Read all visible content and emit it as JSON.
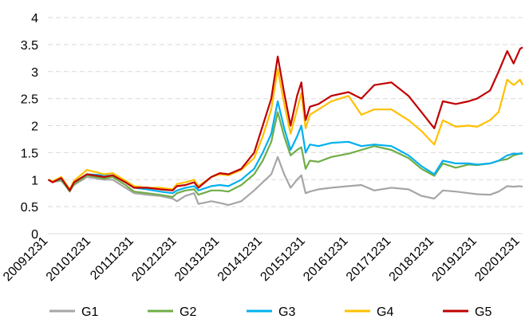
{
  "chart_data": {
    "type": "line",
    "title": "",
    "xlabel": "",
    "ylabel": "",
    "ylim": [
      0,
      4
    ],
    "yticks": [
      "0",
      "0.5",
      "1",
      "1.5",
      "2",
      "2.5",
      "3",
      "3.5",
      "4"
    ],
    "xlim": [
      2009.99,
      2021.06
    ],
    "xticks": [
      {
        "label": "20091231",
        "x": 2010.0
      },
      {
        "label": "20101231",
        "x": 2011.0
      },
      {
        "label": "20111231",
        "x": 2012.0
      },
      {
        "label": "20121231",
        "x": 2013.0
      },
      {
        "label": "20131231",
        "x": 2014.0
      },
      {
        "label": "20141231",
        "x": 2015.0
      },
      {
        "label": "20151231",
        "x": 2016.0
      },
      {
        "label": "20161231",
        "x": 2017.0
      },
      {
        "label": "20171231",
        "x": 2018.0
      },
      {
        "label": "20181231",
        "x": 2019.0
      },
      {
        "label": "20191231",
        "x": 2020.0
      },
      {
        "label": "20201231",
        "x": 2021.0
      }
    ],
    "grid": "horizontal dashed",
    "legend_position": "bottom",
    "series": [
      {
        "name": "G1",
        "color": "#a6a6a6",
        "points": [
          [
            2010.0,
            1.0
          ],
          [
            2010.1,
            0.96
          ],
          [
            2010.3,
            0.98
          ],
          [
            2010.5,
            0.8
          ],
          [
            2010.6,
            0.9
          ],
          [
            2010.9,
            1.05
          ],
          [
            2011.3,
            1.0
          ],
          [
            2011.5,
            1.0
          ],
          [
            2011.8,
            0.85
          ],
          [
            2012.0,
            0.75
          ],
          [
            2012.3,
            0.72
          ],
          [
            2012.6,
            0.7
          ],
          [
            2012.9,
            0.65
          ],
          [
            2013.0,
            0.6
          ],
          [
            2013.2,
            0.7
          ],
          [
            2013.4,
            0.75
          ],
          [
            2013.5,
            0.55
          ],
          [
            2013.8,
            0.6
          ],
          [
            2014.0,
            0.57
          ],
          [
            2014.2,
            0.53
          ],
          [
            2014.5,
            0.6
          ],
          [
            2014.8,
            0.8
          ],
          [
            2015.0,
            0.95
          ],
          [
            2015.2,
            1.1
          ],
          [
            2015.35,
            1.42
          ],
          [
            2015.5,
            1.1
          ],
          [
            2015.65,
            0.85
          ],
          [
            2015.8,
            1.0
          ],
          [
            2015.9,
            1.08
          ],
          [
            2016.0,
            0.75
          ],
          [
            2016.1,
            0.78
          ],
          [
            2016.3,
            0.82
          ],
          [
            2016.6,
            0.85
          ],
          [
            2017.0,
            0.88
          ],
          [
            2017.3,
            0.9
          ],
          [
            2017.6,
            0.8
          ],
          [
            2018.0,
            0.85
          ],
          [
            2018.4,
            0.82
          ],
          [
            2018.7,
            0.7
          ],
          [
            2019.0,
            0.65
          ],
          [
            2019.2,
            0.8
          ],
          [
            2019.5,
            0.78
          ],
          [
            2019.8,
            0.75
          ],
          [
            2020.0,
            0.73
          ],
          [
            2020.3,
            0.72
          ],
          [
            2020.5,
            0.78
          ],
          [
            2020.7,
            0.88
          ],
          [
            2020.85,
            0.87
          ],
          [
            2021.0,
            0.88
          ],
          [
            2021.06,
            0.87
          ]
        ]
      },
      {
        "name": "G2",
        "color": "#70ad47",
        "points": [
          [
            2010.0,
            1.0
          ],
          [
            2010.1,
            0.96
          ],
          [
            2010.3,
            1.0
          ],
          [
            2010.5,
            0.78
          ],
          [
            2010.6,
            0.92
          ],
          [
            2010.9,
            1.08
          ],
          [
            2011.3,
            1.02
          ],
          [
            2011.5,
            1.05
          ],
          [
            2011.8,
            0.9
          ],
          [
            2012.0,
            0.78
          ],
          [
            2012.3,
            0.75
          ],
          [
            2012.6,
            0.72
          ],
          [
            2012.9,
            0.68
          ],
          [
            2013.0,
            0.75
          ],
          [
            2013.2,
            0.8
          ],
          [
            2013.4,
            0.82
          ],
          [
            2013.5,
            0.72
          ],
          [
            2013.8,
            0.8
          ],
          [
            2014.0,
            0.8
          ],
          [
            2014.2,
            0.78
          ],
          [
            2014.5,
            0.9
          ],
          [
            2014.8,
            1.1
          ],
          [
            2015.0,
            1.35
          ],
          [
            2015.2,
            1.7
          ],
          [
            2015.35,
            2.25
          ],
          [
            2015.5,
            1.8
          ],
          [
            2015.65,
            1.45
          ],
          [
            2015.8,
            1.55
          ],
          [
            2015.9,
            1.6
          ],
          [
            2016.0,
            1.2
          ],
          [
            2016.1,
            1.35
          ],
          [
            2016.3,
            1.33
          ],
          [
            2016.6,
            1.42
          ],
          [
            2017.0,
            1.48
          ],
          [
            2017.3,
            1.55
          ],
          [
            2017.6,
            1.62
          ],
          [
            2018.0,
            1.55
          ],
          [
            2018.4,
            1.4
          ],
          [
            2018.7,
            1.2
          ],
          [
            2019.0,
            1.07
          ],
          [
            2019.2,
            1.3
          ],
          [
            2019.5,
            1.22
          ],
          [
            2019.8,
            1.28
          ],
          [
            2020.0,
            1.27
          ],
          [
            2020.3,
            1.3
          ],
          [
            2020.5,
            1.35
          ],
          [
            2020.7,
            1.38
          ],
          [
            2020.85,
            1.45
          ],
          [
            2021.0,
            1.48
          ],
          [
            2021.06,
            1.5
          ]
        ]
      },
      {
        "name": "G3",
        "color": "#00b0f0",
        "points": [
          [
            2010.0,
            1.0
          ],
          [
            2010.1,
            0.96
          ],
          [
            2010.3,
            1.02
          ],
          [
            2010.5,
            0.8
          ],
          [
            2010.6,
            0.95
          ],
          [
            2010.9,
            1.1
          ],
          [
            2011.3,
            1.08
          ],
          [
            2011.5,
            1.12
          ],
          [
            2011.8,
            0.95
          ],
          [
            2012.0,
            0.85
          ],
          [
            2012.3,
            0.82
          ],
          [
            2012.6,
            0.78
          ],
          [
            2012.9,
            0.75
          ],
          [
            2013.0,
            0.8
          ],
          [
            2013.2,
            0.85
          ],
          [
            2013.4,
            0.88
          ],
          [
            2013.5,
            0.8
          ],
          [
            2013.8,
            0.88
          ],
          [
            2014.0,
            0.9
          ],
          [
            2014.2,
            0.88
          ],
          [
            2014.5,
            1.0
          ],
          [
            2014.8,
            1.2
          ],
          [
            2015.0,
            1.5
          ],
          [
            2015.2,
            1.85
          ],
          [
            2015.35,
            2.45
          ],
          [
            2015.5,
            1.95
          ],
          [
            2015.65,
            1.55
          ],
          [
            2015.8,
            1.8
          ],
          [
            2015.9,
            2.0
          ],
          [
            2016.0,
            1.5
          ],
          [
            2016.1,
            1.65
          ],
          [
            2016.3,
            1.62
          ],
          [
            2016.6,
            1.68
          ],
          [
            2017.0,
            1.7
          ],
          [
            2017.3,
            1.62
          ],
          [
            2017.6,
            1.65
          ],
          [
            2018.0,
            1.62
          ],
          [
            2018.4,
            1.45
          ],
          [
            2018.7,
            1.25
          ],
          [
            2019.0,
            1.1
          ],
          [
            2019.2,
            1.35
          ],
          [
            2019.5,
            1.3
          ],
          [
            2019.8,
            1.3
          ],
          [
            2020.0,
            1.28
          ],
          [
            2020.3,
            1.3
          ],
          [
            2020.5,
            1.35
          ],
          [
            2020.7,
            1.45
          ],
          [
            2020.85,
            1.48
          ],
          [
            2021.0,
            1.48
          ],
          [
            2021.06,
            1.48
          ]
        ]
      },
      {
        "name": "G4",
        "color": "#ffc000",
        "points": [
          [
            2010.0,
            1.0
          ],
          [
            2010.1,
            0.97
          ],
          [
            2010.3,
            1.05
          ],
          [
            2010.5,
            0.82
          ],
          [
            2010.6,
            0.98
          ],
          [
            2010.9,
            1.18
          ],
          [
            2011.3,
            1.1
          ],
          [
            2011.5,
            1.12
          ],
          [
            2011.8,
            0.98
          ],
          [
            2012.0,
            0.88
          ],
          [
            2012.3,
            0.85
          ],
          [
            2012.6,
            0.85
          ],
          [
            2012.9,
            0.82
          ],
          [
            2013.0,
            0.92
          ],
          [
            2013.2,
            0.95
          ],
          [
            2013.4,
            1.0
          ],
          [
            2013.5,
            0.88
          ],
          [
            2013.8,
            1.05
          ],
          [
            2014.0,
            1.1
          ],
          [
            2014.2,
            1.08
          ],
          [
            2014.5,
            1.18
          ],
          [
            2014.8,
            1.4
          ],
          [
            2015.0,
            1.8
          ],
          [
            2015.2,
            2.3
          ],
          [
            2015.35,
            3.05
          ],
          [
            2015.5,
            2.4
          ],
          [
            2015.65,
            1.85
          ],
          [
            2015.8,
            2.3
          ],
          [
            2015.9,
            2.6
          ],
          [
            2016.0,
            1.95
          ],
          [
            2016.1,
            2.2
          ],
          [
            2016.3,
            2.3
          ],
          [
            2016.6,
            2.45
          ],
          [
            2017.0,
            2.55
          ],
          [
            2017.3,
            2.2
          ],
          [
            2017.6,
            2.3
          ],
          [
            2018.0,
            2.3
          ],
          [
            2018.4,
            2.1
          ],
          [
            2018.7,
            1.9
          ],
          [
            2019.0,
            1.65
          ],
          [
            2019.2,
            2.1
          ],
          [
            2019.5,
            1.98
          ],
          [
            2019.8,
            2.0
          ],
          [
            2020.0,
            1.98
          ],
          [
            2020.3,
            2.1
          ],
          [
            2020.5,
            2.25
          ],
          [
            2020.7,
            2.85
          ],
          [
            2020.85,
            2.75
          ],
          [
            2021.0,
            2.85
          ],
          [
            2021.06,
            2.75
          ]
        ]
      },
      {
        "name": "G5",
        "color": "#c00000",
        "points": [
          [
            2010.0,
            1.0
          ],
          [
            2010.1,
            0.95
          ],
          [
            2010.3,
            1.03
          ],
          [
            2010.5,
            0.8
          ],
          [
            2010.6,
            0.95
          ],
          [
            2010.9,
            1.1
          ],
          [
            2011.3,
            1.05
          ],
          [
            2011.5,
            1.08
          ],
          [
            2011.8,
            0.95
          ],
          [
            2012.0,
            0.85
          ],
          [
            2012.3,
            0.85
          ],
          [
            2012.6,
            0.82
          ],
          [
            2012.9,
            0.8
          ],
          [
            2013.0,
            0.88
          ],
          [
            2013.2,
            0.9
          ],
          [
            2013.4,
            0.95
          ],
          [
            2013.5,
            0.85
          ],
          [
            2013.8,
            1.05
          ],
          [
            2014.0,
            1.12
          ],
          [
            2014.2,
            1.1
          ],
          [
            2014.5,
            1.2
          ],
          [
            2014.8,
            1.5
          ],
          [
            2015.0,
            2.0
          ],
          [
            2015.2,
            2.5
          ],
          [
            2015.35,
            3.28
          ],
          [
            2015.5,
            2.6
          ],
          [
            2015.65,
            2.0
          ],
          [
            2015.8,
            2.55
          ],
          [
            2015.9,
            2.8
          ],
          [
            2016.0,
            2.1
          ],
          [
            2016.1,
            2.35
          ],
          [
            2016.3,
            2.4
          ],
          [
            2016.6,
            2.55
          ],
          [
            2017.0,
            2.62
          ],
          [
            2017.3,
            2.5
          ],
          [
            2017.6,
            2.75
          ],
          [
            2018.0,
            2.8
          ],
          [
            2018.4,
            2.55
          ],
          [
            2018.7,
            2.25
          ],
          [
            2019.0,
            1.95
          ],
          [
            2019.2,
            2.45
          ],
          [
            2019.5,
            2.4
          ],
          [
            2019.8,
            2.45
          ],
          [
            2020.0,
            2.5
          ],
          [
            2020.3,
            2.65
          ],
          [
            2020.5,
            3.0
          ],
          [
            2020.7,
            3.38
          ],
          [
            2020.85,
            3.15
          ],
          [
            2021.0,
            3.42
          ],
          [
            2021.06,
            3.45
          ]
        ]
      }
    ]
  }
}
